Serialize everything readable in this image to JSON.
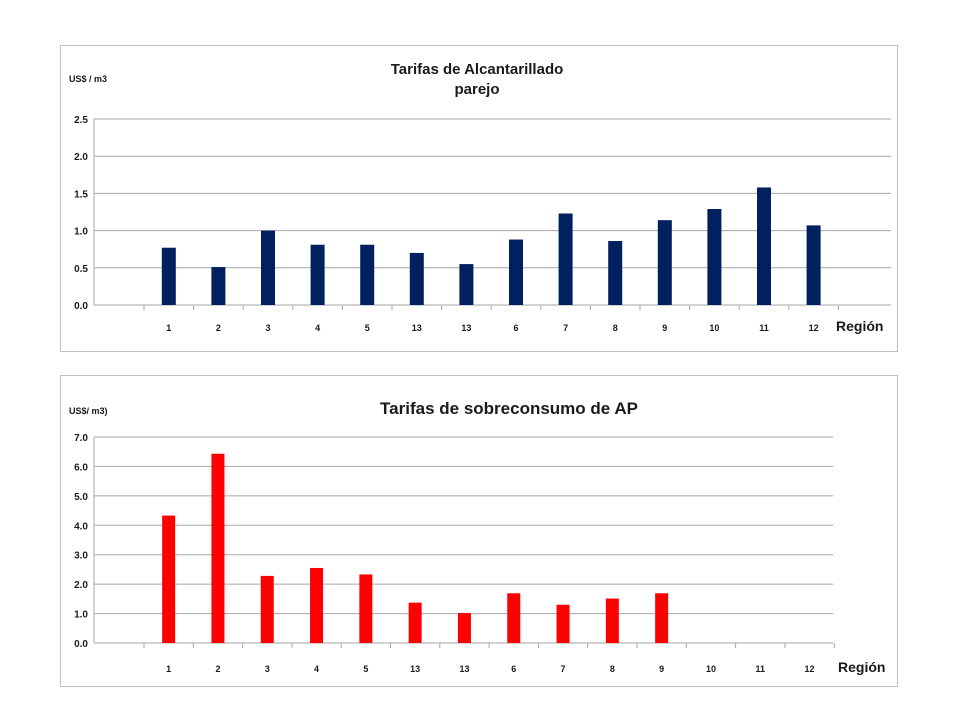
{
  "chart_data": [
    {
      "type": "bar",
      "title": "Tarifas de Alcantarillado",
      "subtitle": "parejo",
      "ylabel": "US$ / m3",
      "xlabel": "Región",
      "categories": [
        "1",
        "2",
        "3",
        "4",
        "5",
        "13",
        "13",
        "6",
        "7",
        "8",
        "9",
        "10",
        "11",
        "12"
      ],
      "values": [
        0.77,
        0.51,
        1.0,
        0.81,
        0.81,
        0.7,
        0.55,
        0.88,
        1.23,
        0.86,
        1.14,
        1.29,
        1.58,
        1.07
      ],
      "ylim": [
        0,
        2.5
      ],
      "yticks": [
        "0.0",
        "0.5",
        "1.0",
        "1.5",
        "2.0",
        "2.5"
      ],
      "grid": true,
      "color": "#002060"
    },
    {
      "type": "bar",
      "title": "Tarifas de sobreconsumo de AP",
      "ylabel": "US$/ m3)",
      "xlabel": "Región",
      "categories": [
        "1",
        "2",
        "3",
        "4",
        "5",
        "13",
        "13",
        "6",
        "7",
        "8",
        "9",
        "10",
        "11",
        "12"
      ],
      "values": [
        4.33,
        6.43,
        2.28,
        2.55,
        2.33,
        1.37,
        1.02,
        1.69,
        1.3,
        1.51,
        1.69,
        null,
        null,
        null
      ],
      "ylim": [
        0,
        7
      ],
      "yticks": [
        "0.0",
        "1.0",
        "2.0",
        "3.0",
        "4.0",
        "5.0",
        "6.0",
        "7.0"
      ],
      "grid": true,
      "color": "#ff0000"
    }
  ]
}
